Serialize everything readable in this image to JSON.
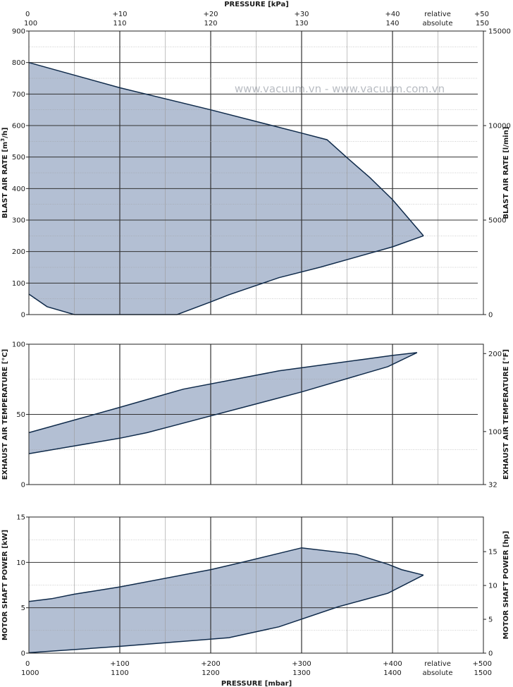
{
  "watermark": "www.vacuum.vn - www.vacuum.com.vn",
  "colors": {
    "fill": "#b3bfd3",
    "stroke": "#0f2a4a",
    "grid_major": "#333333",
    "grid_minor": "#9a9a9a"
  },
  "top_axis": {
    "title": "PRESSURE [kPa]",
    "relative_ticks": [
      "0",
      "+10",
      "+20",
      "+30",
      "+40",
      "+50"
    ],
    "absolute_ticks": [
      "100",
      "110",
      "120",
      "130",
      "140",
      "150"
    ],
    "relative_label": "relative",
    "absolute_label": "absolute"
  },
  "bottom_axis": {
    "title": "PRESSURE [mbar]",
    "relative_ticks": [
      "0",
      "+100",
      "+200",
      "+300",
      "+400",
      "+500"
    ],
    "absolute_ticks": [
      "1000",
      "1100",
      "1200",
      "1300",
      "1400",
      "1500"
    ],
    "relative_label": "relative",
    "absolute_label": "absolute"
  },
  "chart_data": [
    {
      "type": "area",
      "x_unit": "mbar (relative)",
      "xlim": [
        0,
        500
      ],
      "ylim": [
        0,
        900
      ],
      "ylabel": "BLAST AIR RATE [m3/h]",
      "ylabel_main": "BLAST AIR RATE  [m",
      "ylabel_sup": "3",
      "ylabel_tail": "/h]",
      "y2label": "BLAST AIR RATE [l/min]",
      "yticks": [
        "0",
        "100",
        "200",
        "300",
        "400",
        "500",
        "600",
        "700",
        "800",
        "900"
      ],
      "y2ticks": [
        "0",
        "5000",
        "10000",
        "15000"
      ],
      "upper_boundary": [
        [
          0,
          800
        ],
        [
          100,
          720
        ],
        [
          200,
          650
        ],
        [
          300,
          576
        ],
        [
          328,
          555
        ],
        [
          350,
          498
        ],
        [
          375,
          435
        ],
        [
          400,
          365
        ],
        [
          434,
          250
        ]
      ],
      "lower_boundary": [
        [
          0,
          65
        ],
        [
          20,
          25
        ],
        [
          50,
          0
        ],
        [
          163,
          0
        ],
        [
          200,
          40
        ],
        [
          220,
          63
        ],
        [
          275,
          117
        ],
        [
          320,
          150
        ],
        [
          400,
          215
        ],
        [
          434,
          250
        ]
      ]
    },
    {
      "type": "area",
      "x_unit": "mbar (relative)",
      "xlim": [
        0,
        500
      ],
      "ylim": [
        0,
        100
      ],
      "ylabel": "EXHAUST AIR TEMPERATURE [°C]",
      "y2label": "EXHAUST AIR TEMPERATURE [°F]",
      "yticks": [
        "0",
        "50",
        "100"
      ],
      "y2ticks": [
        "32",
        "100",
        "200"
      ],
      "upper_boundary": [
        [
          0,
          37
        ],
        [
          50,
          46
        ],
        [
          100,
          55
        ],
        [
          170,
          68
        ],
        [
          275,
          81
        ],
        [
          400,
          92
        ],
        [
          427,
          94
        ]
      ],
      "lower_boundary": [
        [
          0,
          22
        ],
        [
          100,
          33
        ],
        [
          130,
          37
        ],
        [
          300,
          66
        ],
        [
          395,
          84
        ],
        [
          427,
          94
        ]
      ]
    },
    {
      "type": "area",
      "x_unit": "mbar (relative)",
      "xlim": [
        0,
        500
      ],
      "ylim": [
        0,
        15
      ],
      "ylabel": "MOTOR SHAFT POWER [kW]",
      "y2label": "MOTOR SHAFT POWER [hp]",
      "yticks": [
        "0",
        "5",
        "10",
        "15"
      ],
      "y2ticks": [
        "0",
        "5",
        "10",
        "15"
      ],
      "upper_boundary": [
        [
          0,
          5.7
        ],
        [
          25,
          6.0
        ],
        [
          50,
          6.5
        ],
        [
          100,
          7.3
        ],
        [
          200,
          9.2
        ],
        [
          230,
          9.9
        ],
        [
          300,
          11.6
        ],
        [
          360,
          10.9
        ],
        [
          395,
          9.8
        ],
        [
          410,
          9.2
        ],
        [
          434,
          8.6
        ]
      ],
      "lower_boundary": [
        [
          0,
          0.05
        ],
        [
          100,
          0.75
        ],
        [
          220,
          1.7
        ],
        [
          275,
          2.9
        ],
        [
          340,
          5.1
        ],
        [
          395,
          6.6
        ],
        [
          434,
          8.6
        ]
      ]
    }
  ]
}
